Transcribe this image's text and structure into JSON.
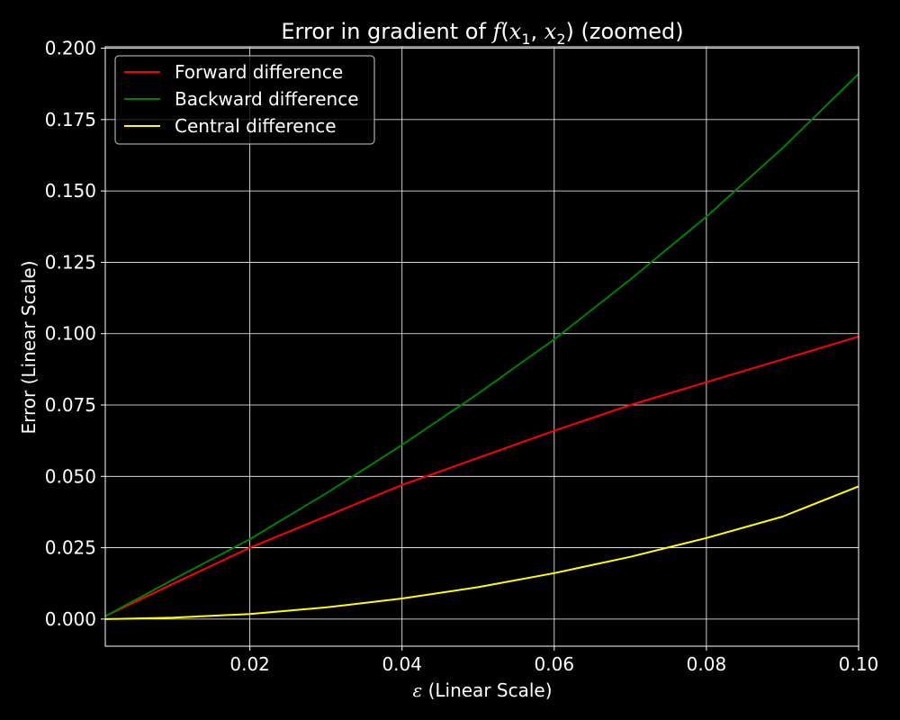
{
  "chart_data": {
    "type": "line",
    "title": {
      "prefix": "Error in gradient of ",
      "func": "f",
      "open": "(",
      "var1": "x",
      "sub1": "1",
      "comma": ", ",
      "var2": "x",
      "sub2": "2",
      "close": ")",
      "suffix": " (zoomed)"
    },
    "xlabel": {
      "symbol": "ε",
      "text": " (Linear Scale)"
    },
    "ylabel": "Error (Linear Scale)",
    "xlim": [
      0.001,
      0.1
    ],
    "ylim": [
      -0.0095,
      0.2005
    ],
    "xticks": [
      0.02,
      0.04,
      0.06,
      0.08,
      0.1
    ],
    "xtick_labels": [
      "0.02",
      "0.04",
      "0.06",
      "0.08",
      "0.10"
    ],
    "yticks": [
      0.0,
      0.025,
      0.05,
      0.075,
      0.1,
      0.125,
      0.15,
      0.175,
      0.2
    ],
    "ytick_labels": [
      "0.000",
      "0.025",
      "0.050",
      "0.075",
      "0.100",
      "0.125",
      "0.150",
      "0.175",
      "0.200"
    ],
    "grid": true,
    "legend_position": "top-left",
    "background": "#000000",
    "foreground": "#ffffff",
    "x": [
      0.001,
      0.01,
      0.02,
      0.03,
      0.04,
      0.05,
      0.06,
      0.07,
      0.08,
      0.09,
      0.1
    ],
    "series": [
      {
        "name": "Forward difference",
        "color": "#ff0000",
        "values": [
          0.001,
          0.0125,
          0.025,
          0.036,
          0.047,
          0.0565,
          0.066,
          0.075,
          0.083,
          0.091,
          0.099
        ]
      },
      {
        "name": "Backward difference",
        "color": "#008000",
        "values": [
          0.001,
          0.014,
          0.028,
          0.044,
          0.061,
          0.079,
          0.098,
          0.119,
          0.141,
          0.165,
          0.191
        ]
      },
      {
        "name": "Central difference",
        "color": "#ffff00",
        "values": [
          0.0,
          0.0005,
          0.0018,
          0.0041,
          0.0072,
          0.0112,
          0.0161,
          0.0218,
          0.0284,
          0.0359,
          0.0465
        ]
      }
    ]
  }
}
